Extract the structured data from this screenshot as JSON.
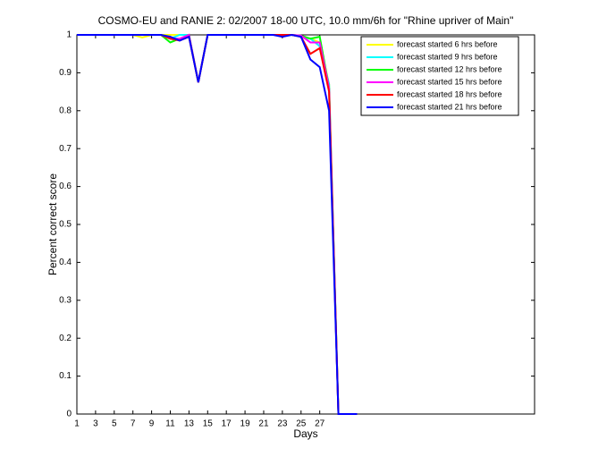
{
  "chart_data": {
    "type": "line",
    "title": "COSMO-EU and RANIE 2: 02/2007 18-00 UTC, 10.0 mm/6h for \"Rhine upriver of Main\"",
    "xlabel": "Days",
    "ylabel": "Percent correct score",
    "x": [
      1,
      2,
      3,
      4,
      5,
      6,
      7,
      8,
      9,
      10,
      11,
      12,
      13,
      14,
      15,
      16,
      17,
      18,
      19,
      20,
      21,
      22,
      23,
      24,
      25,
      26,
      27,
      28,
      29,
      30,
      31
    ],
    "series": [
      {
        "name": "forecast started 6 hrs before",
        "color": "#ffff00",
        "values": [
          1,
          1,
          1,
          1,
          1,
          1,
          1,
          0.993,
          1,
          1,
          1,
          1,
          1,
          0.875,
          1,
          1,
          1,
          1,
          1,
          1,
          1,
          1,
          1,
          1,
          0.995,
          0.99,
          0.98,
          0.87,
          0,
          0,
          0
        ]
      },
      {
        "name": "forecast started 9 hrs before",
        "color": "#00ffff",
        "values": [
          1,
          1,
          1,
          1,
          1,
          1,
          1,
          1,
          1,
          1,
          0.99,
          1,
          1,
          0.875,
          1,
          1,
          1,
          1,
          1,
          1,
          1,
          1,
          1,
          1,
          0.995,
          0.99,
          0.97,
          0.87,
          0,
          0,
          0
        ]
      },
      {
        "name": "forecast started 12 hrs before",
        "color": "#00ff00",
        "values": [
          1,
          1,
          1,
          1,
          1,
          1,
          1,
          1,
          1,
          1,
          0.98,
          0.99,
          1,
          0.875,
          1,
          1,
          1,
          1,
          1,
          1,
          1,
          1,
          1,
          1,
          0.998,
          0.99,
          0.995,
          0.86,
          0,
          0,
          0
        ]
      },
      {
        "name": "forecast started 15 hrs before",
        "color": "#ff00ff",
        "values": [
          1,
          1,
          1,
          1,
          1,
          1,
          1,
          1,
          1,
          1,
          0.99,
          0.99,
          1,
          0.875,
          1,
          1,
          1,
          1,
          1,
          1,
          1,
          1,
          1,
          1,
          0.998,
          0.98,
          0.98,
          0.86,
          0,
          0,
          0
        ]
      },
      {
        "name": "forecast started 18 hrs before",
        "color": "#ff0000",
        "values": [
          1,
          1,
          1,
          1,
          1,
          1,
          1,
          1,
          1,
          1,
          0.99,
          0.985,
          0.995,
          0.875,
          1,
          1,
          1,
          1,
          1,
          1,
          1,
          1,
          1,
          1,
          0.995,
          0.95,
          0.965,
          0.85,
          0,
          0,
          0
        ]
      },
      {
        "name": "forecast started 21 hrs before",
        "color": "#0000ff",
        "values": [
          1,
          1,
          1,
          1,
          1,
          1,
          1,
          1,
          1,
          1,
          0.995,
          0.985,
          0.995,
          0.875,
          1,
          1,
          1,
          1,
          1,
          1,
          1,
          1,
          0.995,
          1,
          0.995,
          0.935,
          0.915,
          0.8,
          0,
          0,
          0
        ]
      }
    ],
    "xlim": [
      1,
      50
    ],
    "xticks": [
      1,
      3,
      5,
      7,
      9,
      11,
      13,
      15,
      17,
      19,
      21,
      23,
      25,
      27
    ],
    "ylim": [
      0,
      1
    ],
    "yticks": [
      0,
      0.1,
      0.2,
      0.3,
      0.4,
      0.5,
      0.6,
      0.7,
      0.8,
      0.9,
      1
    ],
    "legend": "upper right"
  }
}
